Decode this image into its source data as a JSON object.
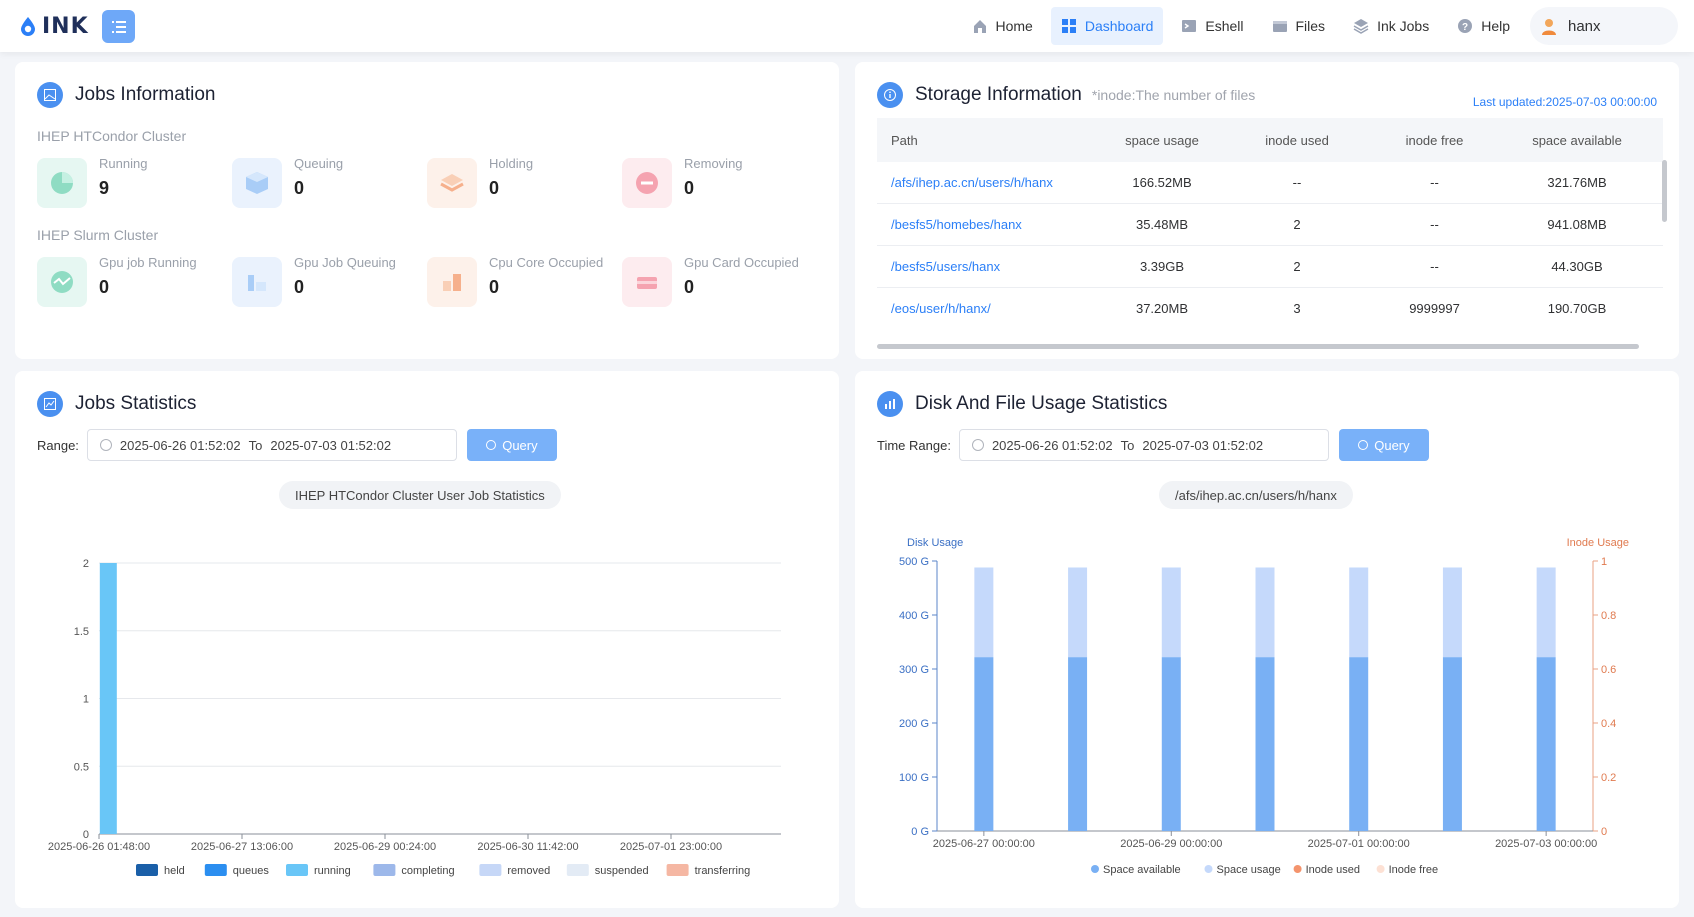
{
  "brand": {
    "name": "INK"
  },
  "nav": [
    {
      "label": "Home",
      "icon": "home-icon"
    },
    {
      "label": "Dashboard",
      "icon": "dashboard-icon",
      "active": true
    },
    {
      "label": "Eshell",
      "icon": "terminal-icon"
    },
    {
      "label": "Files",
      "icon": "folder-icon"
    },
    {
      "label": "Ink Jobs",
      "icon": "layers-icon"
    },
    {
      "label": "Help",
      "icon": "help-icon"
    }
  ],
  "user": {
    "name": "hanx"
  },
  "jobs_info": {
    "title": "Jobs Information",
    "htcondor": {
      "label": "IHEP HTCondor Cluster",
      "stats": [
        {
          "label": "Running",
          "value": "9"
        },
        {
          "label": "Queuing",
          "value": "0"
        },
        {
          "label": "Holding",
          "value": "0"
        },
        {
          "label": "Removing",
          "value": "0"
        }
      ]
    },
    "slurm": {
      "label": "IHEP Slurm Cluster",
      "stats": [
        {
          "label": "Gpu job Running",
          "value": "0"
        },
        {
          "label": "Gpu Job Queuing",
          "value": "0"
        },
        {
          "label": "Cpu Core Occupied",
          "value": "0"
        },
        {
          "label": "Gpu Card Occupied",
          "value": "0"
        }
      ]
    }
  },
  "storage": {
    "title": "Storage Information",
    "hint": "*inode:The number of files",
    "updated": "Last updated:2025-07-03 00:00:00",
    "columns": [
      "Path",
      "space usage",
      "inode used",
      "inode free",
      "space available"
    ],
    "rows": [
      [
        "/afs/ihep.ac.cn/users/h/hanx",
        "166.52MB",
        "--",
        "--",
        "321.76MB"
      ],
      [
        "/besfs5/homebes/hanx",
        "35.48MB",
        "2",
        "--",
        "941.08MB"
      ],
      [
        "/besfs5/users/hanx",
        "3.39GB",
        "2",
        "--",
        "44.30GB"
      ],
      [
        "/eos/user/h/hanx/",
        "37.20MB",
        "3",
        "9999997",
        "190.70GB"
      ]
    ]
  },
  "jobs_stats": {
    "title": "Jobs Statistics",
    "range_label": "Range:",
    "start": "2025-06-26 01:52:02",
    "to": "To",
    "end": "2025-07-03 01:52:02",
    "query": "Query",
    "subtitle": "IHEP HTCondor Cluster User Job Statistics"
  },
  "disk_stats": {
    "title": "Disk And File Usage Statistics",
    "range_label": "Time Range:",
    "start": "2025-06-26 01:52:02",
    "to": "To",
    "end": "2025-07-03 01:52:02",
    "query": "Query",
    "subtitle": "/afs/ihep.ac.cn/users/h/hanx"
  },
  "chart_data": [
    {
      "type": "bar",
      "title": "IHEP HTCondor Cluster User Job Statistics",
      "x_ticks": [
        "2025-06-26 01:48:00",
        "2025-06-27 13:06:00",
        "2025-06-29 00:24:00",
        "2025-06-30 11:42:00",
        "2025-07-01 23:00:00"
      ],
      "y_ticks": [
        "0",
        "0.5",
        "1",
        "1.5",
        "2"
      ],
      "ylim": [
        0,
        2
      ],
      "grid": true,
      "legend_position": "bottom",
      "series": [
        {
          "name": "held",
          "color": "#1a5fa8"
        },
        {
          "name": "queues",
          "color": "#2b8ef0"
        },
        {
          "name": "running",
          "color": "#69c6f7",
          "points": [
            {
              "x": "2025-06-26 02:00:00",
              "y": 2
            }
          ]
        },
        {
          "name": "completing",
          "color": "#9db8ea"
        },
        {
          "name": "removed",
          "color": "#c6d7f7"
        },
        {
          "name": "suspended",
          "color": "#e3ebf5"
        },
        {
          "name": "transferring",
          "color": "#f5b7a3"
        }
      ]
    },
    {
      "type": "bar",
      "title": "/afs/ihep.ac.cn/users/h/hanx",
      "y_left_label": "Disk Usage",
      "y_right_label": "Inode Usage",
      "y_left_ticks": [
        "0 G",
        "100 G",
        "200 G",
        "300 G",
        "400 G",
        "500 G"
      ],
      "y_right_ticks": [
        "0",
        "0.2",
        "0.4",
        "0.6",
        "0.8",
        "1"
      ],
      "ylim_left": [
        0,
        500
      ],
      "ylim_right": [
        0,
        1
      ],
      "x_ticks": [
        "2025-06-27 00:00:00",
        "2025-06-29 00:00:00",
        "2025-07-01 00:00:00",
        "2025-07-03 00:00:00"
      ],
      "categories": [
        "2025-06-27",
        "2025-06-28",
        "2025-06-29",
        "2025-06-30",
        "2025-07-01",
        "2025-07-02",
        "2025-07-03"
      ],
      "stacked": true,
      "legend_position": "bottom",
      "series": [
        {
          "name": "Space available",
          "color": "#79b0f4",
          "values": [
            322,
            322,
            322,
            322,
            322,
            322,
            322
          ]
        },
        {
          "name": "Space usage",
          "color": "#c5d9fb",
          "values": [
            166,
            166,
            166,
            166,
            166,
            166,
            166
          ]
        },
        {
          "name": "Inode used",
          "color": "#f4946d",
          "values": [
            0,
            0,
            0,
            0,
            0,
            0,
            0
          ]
        },
        {
          "name": "Inode free",
          "color": "#fde1d4",
          "values": [
            0,
            0,
            0,
            0,
            0,
            0,
            0
          ]
        }
      ]
    }
  ]
}
